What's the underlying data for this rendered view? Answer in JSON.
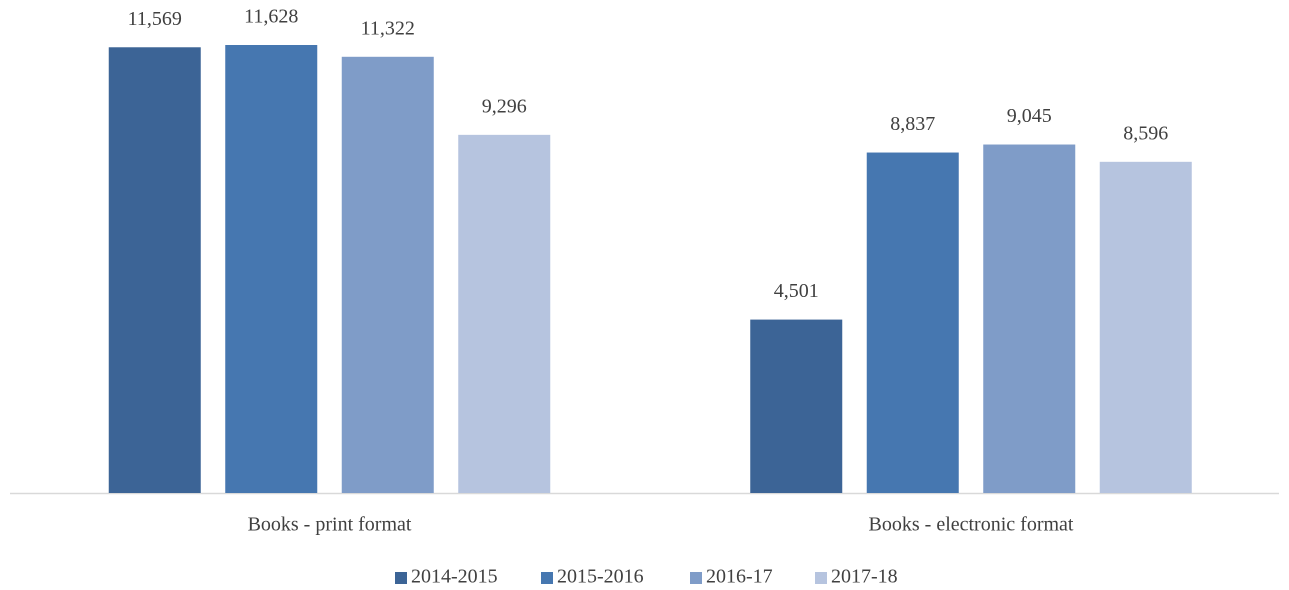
{
  "chart_data": {
    "type": "bar",
    "categories": [
      "Books - print format",
      "Books - electronic format"
    ],
    "series": [
      {
        "name": "2014-2015",
        "color": "#3c6496",
        "values": [
          11569,
          4501
        ],
        "value_labels": [
          "11,569",
          "4,501"
        ]
      },
      {
        "name": "2015-2016",
        "color": "#4677b0",
        "values": [
          11628,
          8837
        ],
        "value_labels": [
          "11,628",
          "8,837"
        ]
      },
      {
        "name": "2016-17",
        "color": "#7f9cc8",
        "values": [
          11322,
          9045
        ],
        "value_labels": [
          "11,322",
          "9,045"
        ]
      },
      {
        "name": "2017-18",
        "color": "#b6c4df",
        "values": [
          9296,
          8596
        ],
        "value_labels": [
          "9,296",
          "8,596"
        ]
      }
    ],
    "legend": "bottom"
  }
}
